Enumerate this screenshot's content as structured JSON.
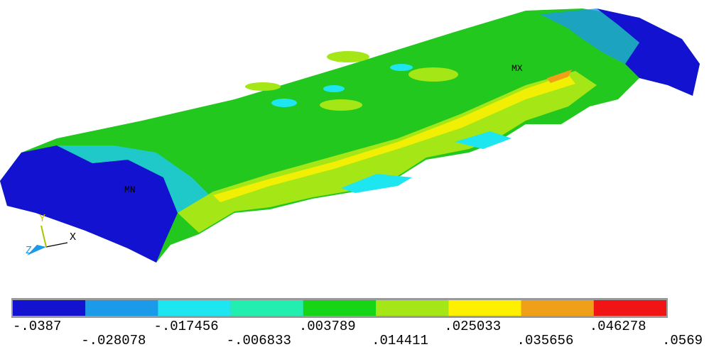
{
  "plot": {
    "labels": {
      "min": "MN",
      "max": "MX"
    },
    "triad": {
      "x": "X",
      "y": "Y",
      "z": "Z"
    }
  },
  "legend": {
    "colors": [
      "#1212d0",
      "#1a9ae8",
      "#1ee6f0",
      "#22eeb0",
      "#16d416",
      "#a4e616",
      "#fff000",
      "#f0a018",
      "#f01414"
    ],
    "labels": [
      "-.0387",
      "-.028078",
      "-.017456",
      "-.006833",
      ".003789",
      ".014411",
      ".025033",
      ".035656",
      ".046278",
      ".0569"
    ]
  }
}
